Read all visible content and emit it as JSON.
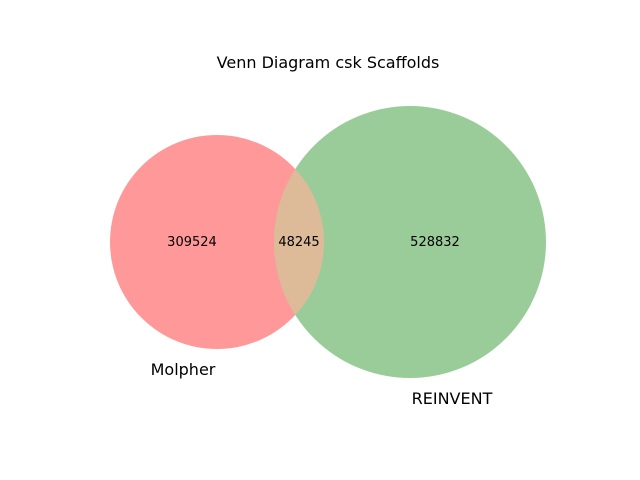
{
  "diagram": {
    "title": "Venn Diagram csk Scaffolds",
    "sets": [
      {
        "name": "Molpher",
        "only_count": "309524",
        "color": "#ff9999"
      },
      {
        "name": "REINVENT",
        "only_count": "528832",
        "color": "#99cc99"
      }
    ],
    "overlap_count": "48245",
    "overlap_color": "#ddbb99"
  }
}
